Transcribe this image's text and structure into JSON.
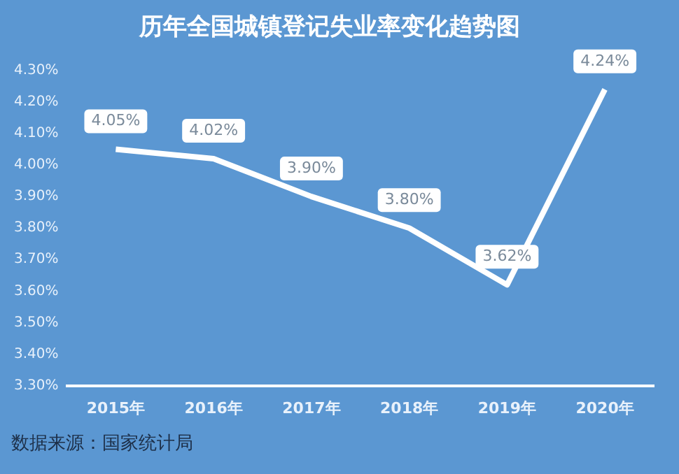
{
  "chart_data": {
    "type": "line",
    "title": "历年全国城镇登记失业率变化趋势图",
    "categories": [
      "2015年",
      "2016年",
      "2017年",
      "2018年",
      "2019年",
      "2020年"
    ],
    "series": [
      {
        "color": "#ffffff",
        "values": [
          4.05,
          4.02,
          3.9,
          3.8,
          3.62,
          4.24
        ]
      }
    ],
    "value_labels": [
      "4.05%",
      "4.02%",
      "3.90%",
      "3.80%",
      "3.62%",
      "4.24%"
    ],
    "ylim": [
      3.3,
      4.3
    ],
    "yticks": [
      {
        "value": 3.3,
        "label": "3.30%"
      },
      {
        "value": 3.4,
        "label": "3.40%"
      },
      {
        "value": 3.5,
        "label": "3.50%"
      },
      {
        "value": 3.6,
        "label": "3.60%"
      },
      {
        "value": 3.7,
        "label": "3.70%"
      },
      {
        "value": 3.8,
        "label": "3.80%"
      },
      {
        "value": 3.9,
        "label": "3.90%"
      },
      {
        "value": 4.0,
        "label": "4.00%"
      },
      {
        "value": 4.1,
        "label": "4.10%"
      },
      {
        "value": 4.2,
        "label": "4.20%"
      },
      {
        "value": 4.3,
        "label": "4.30%"
      }
    ],
    "grid": false,
    "legend": false,
    "marker": "none",
    "line_style": "solid",
    "annotations": [
      "数据来源：国家统计局"
    ]
  }
}
